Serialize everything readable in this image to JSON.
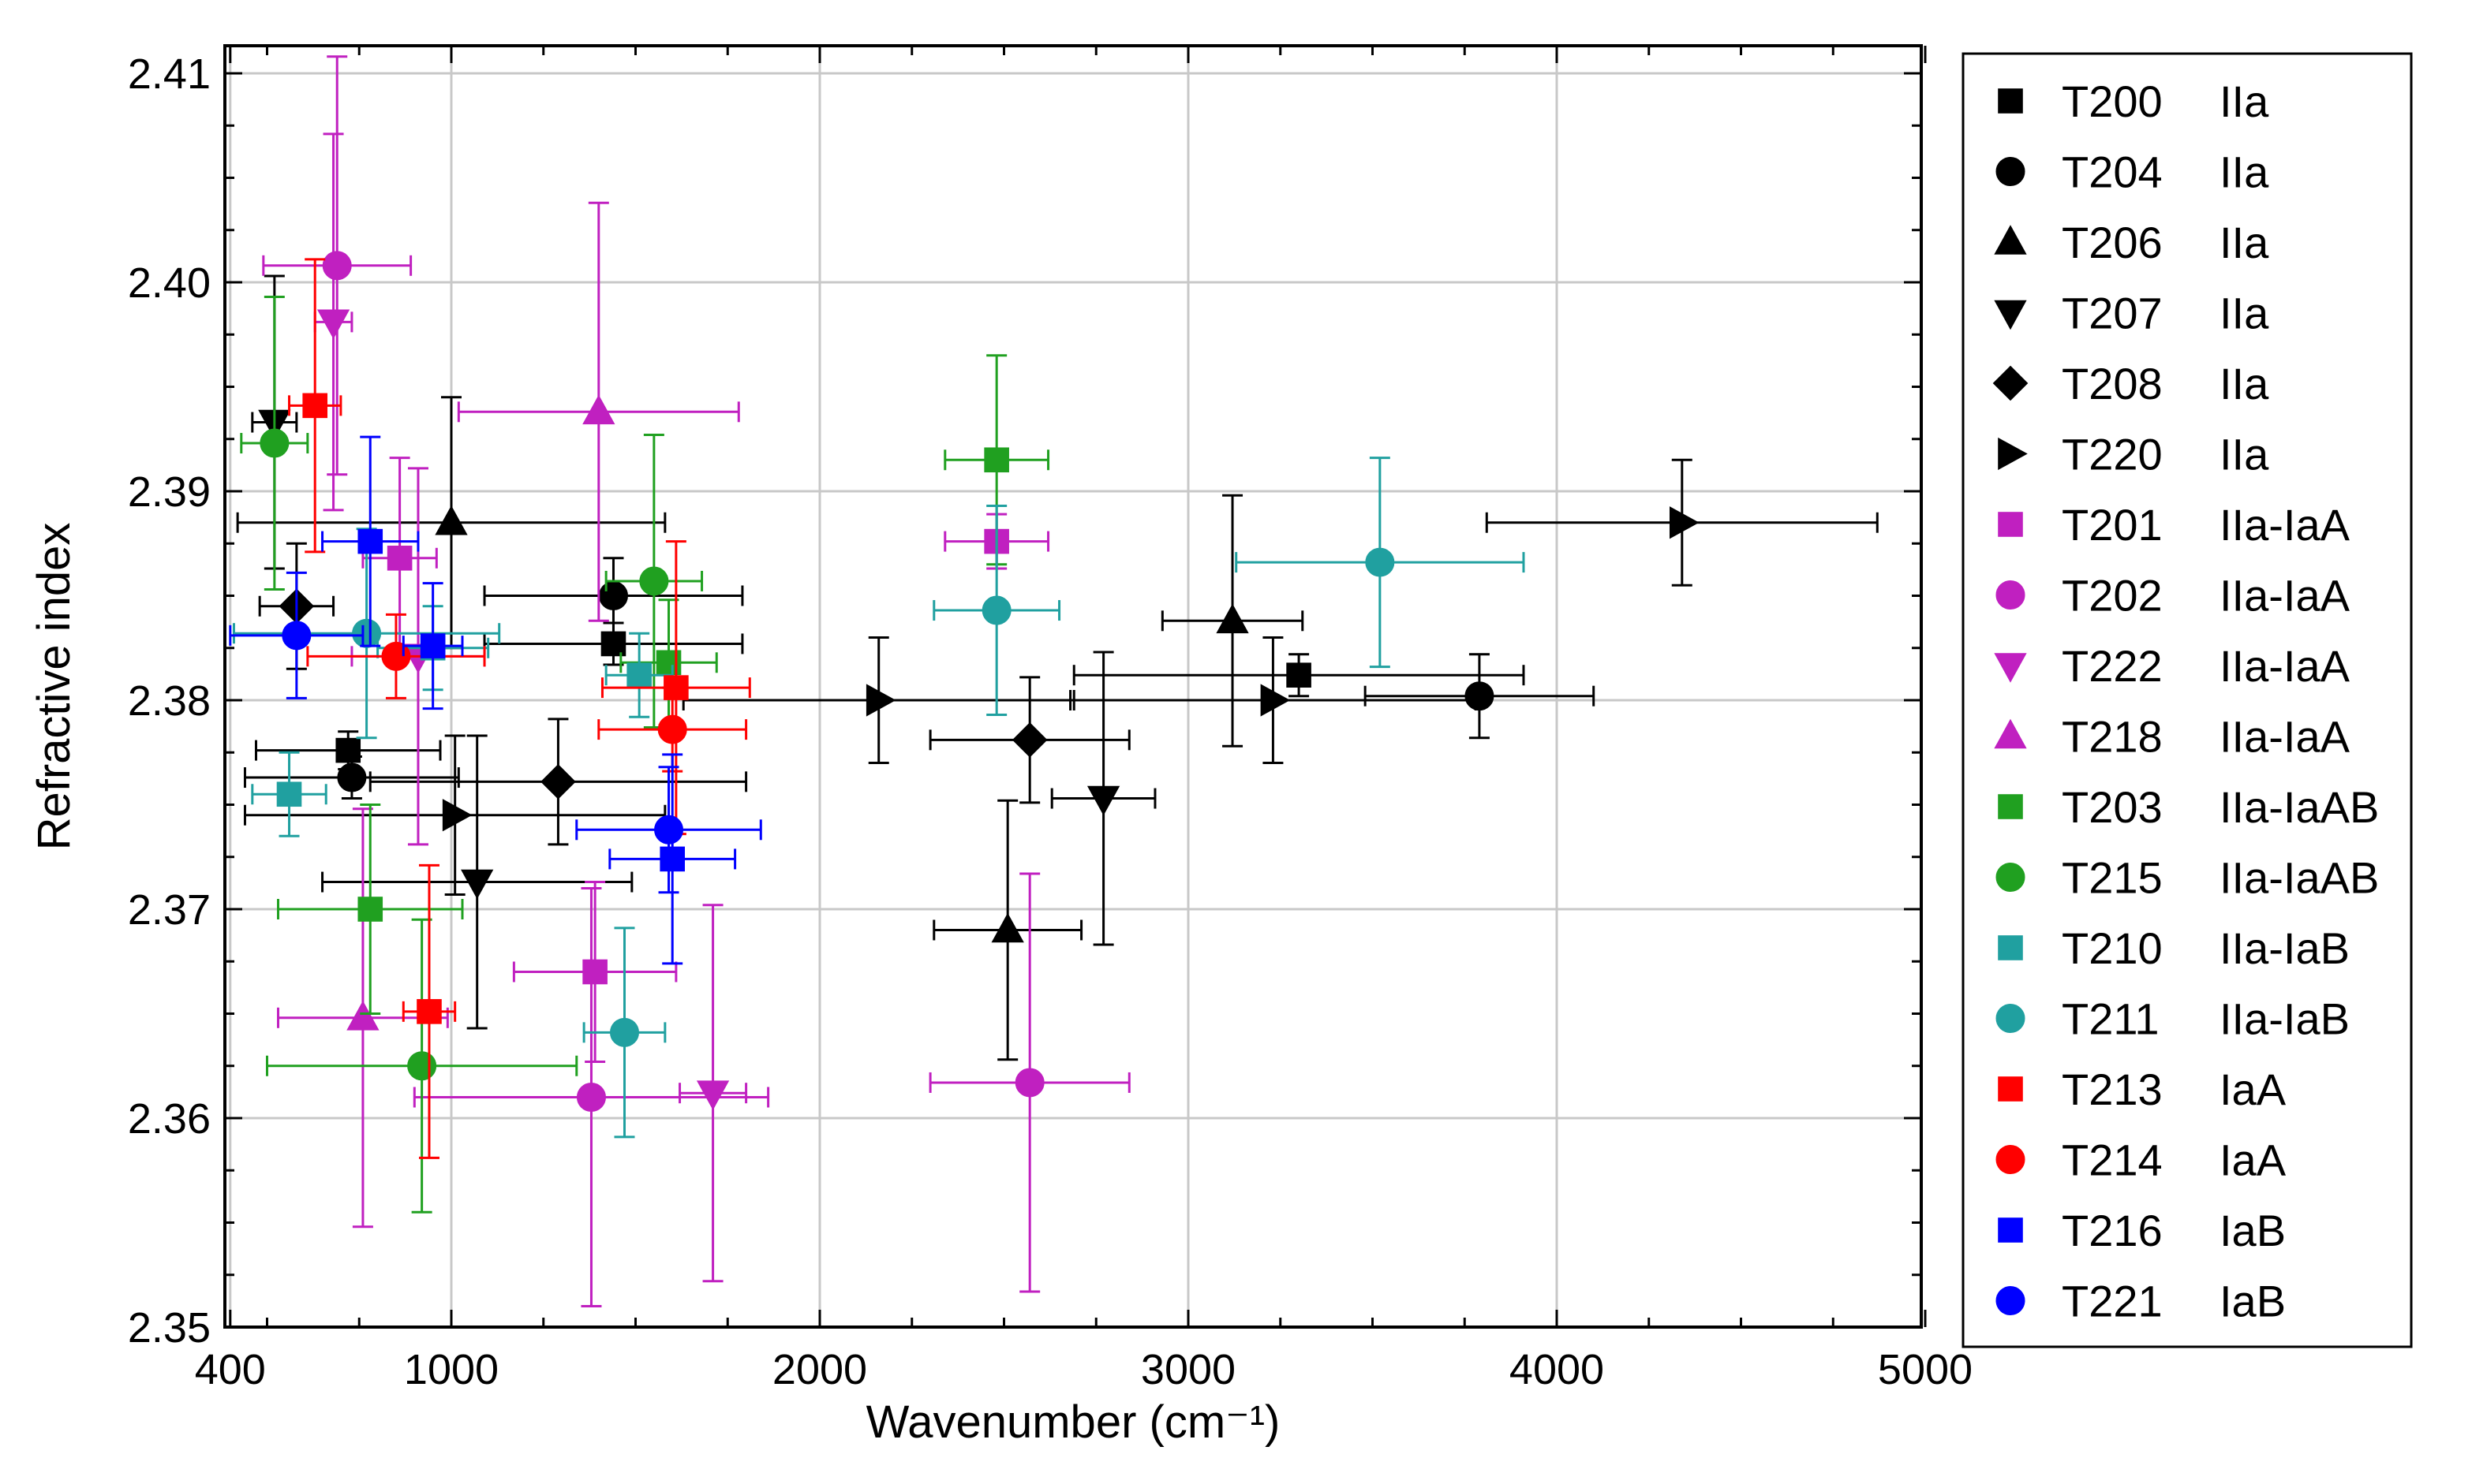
{
  "chart_data": {
    "type": "scatter",
    "title": "",
    "xlabel": "Wavenumber (cm⁻¹)",
    "ylabel": "Refractive index",
    "xlim": [
      400,
      5000
    ],
    "ylim": [
      2.35,
      2.412
    ],
    "xticks": [
      400,
      1000,
      2000,
      3000,
      4000,
      5000
    ],
    "xtick_labels": [
      "400",
      "1000",
      "2000",
      "3000",
      "4000",
      "5000"
    ],
    "yticks": [
      2.35,
      2.36,
      2.37,
      2.38,
      2.39,
      2.4,
      2.41
    ],
    "ytick_labels": [
      "2.35",
      "2.36",
      "2.37",
      "2.38",
      "2.39",
      "2.40",
      "2.41"
    ],
    "grid": true,
    "legend_position": "right-outside",
    "series": [
      {
        "name": "T200",
        "type_label": "IIa",
        "color": "#000000",
        "marker": "square",
        "points": [
          {
            "x": 720,
            "y": 2.3776,
            "xerr": 250,
            "yerr": 0.0009
          },
          {
            "x": 1440,
            "y": 2.3827,
            "xerr": 350,
            "yerr": 0.001
          },
          {
            "x": 3300,
            "y": 2.3812,
            "xerr": 610,
            "yerr": 0.001
          }
        ]
      },
      {
        "name": "T204",
        "type_label": "IIa",
        "color": "#000000",
        "marker": "circle",
        "points": [
          {
            "x": 730,
            "y": 2.3763,
            "xerr": 290,
            "yerr": 0.001
          },
          {
            "x": 1440,
            "y": 2.385,
            "xerr": 350,
            "yerr": 0.0018
          },
          {
            "x": 3790,
            "y": 2.3802,
            "xerr": 310,
            "yerr": 0.002
          }
        ]
      },
      {
        "name": "T206",
        "type_label": "IIa",
        "color": "#000000",
        "marker": "triangle-up",
        "points": [
          {
            "x": 1000,
            "y": 2.3885,
            "xerr": 580,
            "yerr": 0.006
          },
          {
            "x": 2510,
            "y": 2.369,
            "xerr": 200,
            "yerr": 0.0062
          },
          {
            "x": 3120,
            "y": 2.3838,
            "xerr": 190,
            "yerr": 0.006
          }
        ]
      },
      {
        "name": "T207",
        "type_label": "IIa",
        "color": "#000000",
        "marker": "triangle-down",
        "points": [
          {
            "x": 520,
            "y": 2.3933,
            "xerr": 60,
            "yerr": 0.007
          },
          {
            "x": 1070,
            "y": 2.3713,
            "xerr": 420,
            "yerr": 0.007
          },
          {
            "x": 2770,
            "y": 2.3753,
            "xerr": 140,
            "yerr": 0.007
          }
        ]
      },
      {
        "name": "T208",
        "type_label": "IIa",
        "color": "#000000",
        "marker": "diamond",
        "points": [
          {
            "x": 580,
            "y": 2.3845,
            "xerr": 100,
            "yerr": 0.003
          },
          {
            "x": 1290,
            "y": 2.3761,
            "xerr": 510,
            "yerr": 0.003
          },
          {
            "x": 2570,
            "y": 2.3781,
            "xerr": 270,
            "yerr": 0.003
          }
        ]
      },
      {
        "name": "T220",
        "type_label": "IIa",
        "color": "#000000",
        "marker": "triangle-right",
        "points": [
          {
            "x": 1010,
            "y": 2.3745,
            "xerr": 570,
            "yerr": 0.0038
          },
          {
            "x": 2160,
            "y": 2.38,
            "xerr": 530,
            "yerr": 0.003
          },
          {
            "x": 3230,
            "y": 2.38,
            "xerr": 550,
            "yerr": 0.003
          },
          {
            "x": 4340,
            "y": 2.3885,
            "xerr": 530,
            "yerr": 0.003
          }
        ]
      },
      {
        "name": "T201",
        "type_label": "IIa-IaA",
        "color": "#c020c0",
        "marker": "square",
        "points": [
          {
            "x": 860,
            "y": 2.3868,
            "xerr": 100,
            "yerr": 0.0048
          },
          {
            "x": 1390,
            "y": 2.367,
            "xerr": 220,
            "yerr": 0.0043
          },
          {
            "x": 2480,
            "y": 2.3876,
            "xerr": 140,
            "yerr": 0.0013
          }
        ]
      },
      {
        "name": "T202",
        "type_label": "IIa-IaA",
        "color": "#c020c0",
        "marker": "circle",
        "points": [
          {
            "x": 690,
            "y": 2.4008,
            "xerr": 200,
            "yerr": 0.01
          },
          {
            "x": 1380,
            "y": 2.361,
            "xerr": 480,
            "yerr": 0.01
          },
          {
            "x": 2570,
            "y": 2.3617,
            "xerr": 270,
            "yerr": 0.01
          }
        ]
      },
      {
        "name": "T222",
        "type_label": "IIa-IaA",
        "color": "#c020c0",
        "marker": "triangle-down",
        "points": [
          {
            "x": 680,
            "y": 2.3981,
            "xerr": 50,
            "yerr": 0.009
          },
          {
            "x": 910,
            "y": 2.3821,
            "xerr": 180,
            "yerr": 0.009
          },
          {
            "x": 1710,
            "y": 2.3612,
            "xerr": 90,
            "yerr": 0.009
          }
        ]
      },
      {
        "name": "T218",
        "type_label": "IIa-IaA",
        "color": "#c020c0",
        "marker": "triangle-up",
        "points": [
          {
            "x": 760,
            "y": 2.3648,
            "xerr": 230,
            "yerr": 0.01
          },
          {
            "x": 1400,
            "y": 2.3938,
            "xerr": 380,
            "yerr": 0.01
          }
        ]
      },
      {
        "name": "T203",
        "type_label": "IIa-IaAB",
        "color": "#20a020",
        "marker": "square",
        "points": [
          {
            "x": 1590,
            "y": 2.3818,
            "xerr": 130,
            "yerr": 0.003
          },
          {
            "x": 2480,
            "y": 2.3915,
            "xerr": 140,
            "yerr": 0.005
          },
          {
            "x": 780,
            "y": 2.37,
            "xerr": 250,
            "yerr": 0.005
          }
        ]
      },
      {
        "name": "T215",
        "type_label": "IIa-IaAB",
        "color": "#20a020",
        "marker": "circle",
        "points": [
          {
            "x": 520,
            "y": 2.3923,
            "xerr": 90,
            "yerr": 0.007
          },
          {
            "x": 920,
            "y": 2.3625,
            "xerr": 420,
            "yerr": 0.007
          },
          {
            "x": 1550,
            "y": 2.3857,
            "xerr": 130,
            "yerr": 0.007
          }
        ]
      },
      {
        "name": "T210",
        "type_label": "IIa-IaB",
        "color": "#20a0a0",
        "marker": "square",
        "points": [
          {
            "x": 560,
            "y": 2.3755,
            "xerr": 100,
            "yerr": 0.002
          },
          {
            "x": 950,
            "y": 2.3825,
            "xerr": 150,
            "yerr": 0.002
          },
          {
            "x": 1510,
            "y": 2.3812,
            "xerr": 90,
            "yerr": 0.002
          }
        ]
      },
      {
        "name": "T211",
        "type_label": "IIa-IaB",
        "color": "#20a0a0",
        "marker": "circle",
        "points": [
          {
            "x": 770,
            "y": 2.3832,
            "xerr": 360,
            "yerr": 0.005
          },
          {
            "x": 1470,
            "y": 2.3641,
            "xerr": 110,
            "yerr": 0.005
          },
          {
            "x": 2480,
            "y": 2.3843,
            "xerr": 170,
            "yerr": 0.005
          },
          {
            "x": 3520,
            "y": 2.3866,
            "xerr": 390,
            "yerr": 0.005
          }
        ]
      },
      {
        "name": "T213",
        "type_label": "IaA",
        "color": "#ff0000",
        "marker": "square",
        "points": [
          {
            "x": 630,
            "y": 2.3941,
            "xerr": 70,
            "yerr": 0.007
          },
          {
            "x": 940,
            "y": 2.3651,
            "xerr": 70,
            "yerr": 0.007
          },
          {
            "x": 1610,
            "y": 2.3806,
            "xerr": 200,
            "yerr": 0.007
          }
        ]
      },
      {
        "name": "T214",
        "type_label": "IaA",
        "color": "#ff0000",
        "marker": "circle",
        "points": [
          {
            "x": 850,
            "y": 2.3821,
            "xerr": 240,
            "yerr": 0.002
          },
          {
            "x": 1600,
            "y": 2.3786,
            "xerr": 200,
            "yerr": 0.002
          }
        ]
      },
      {
        "name": "T216",
        "type_label": "IaB",
        "color": "#0000ff",
        "marker": "square",
        "points": [
          {
            "x": 780,
            "y": 2.3876,
            "xerr": 130,
            "yerr": 0.005
          },
          {
            "x": 950,
            "y": 2.3826,
            "xerr": 80,
            "yerr": 0.003
          },
          {
            "x": 1600,
            "y": 2.3724,
            "xerr": 170,
            "yerr": 0.005
          }
        ]
      },
      {
        "name": "T221",
        "type_label": "IaB",
        "color": "#0000ff",
        "marker": "circle",
        "points": [
          {
            "x": 580,
            "y": 2.3831,
            "xerr": 180,
            "yerr": 0.003
          },
          {
            "x": 1590,
            "y": 2.3738,
            "xerr": 250,
            "yerr": 0.003
          }
        ]
      }
    ]
  }
}
